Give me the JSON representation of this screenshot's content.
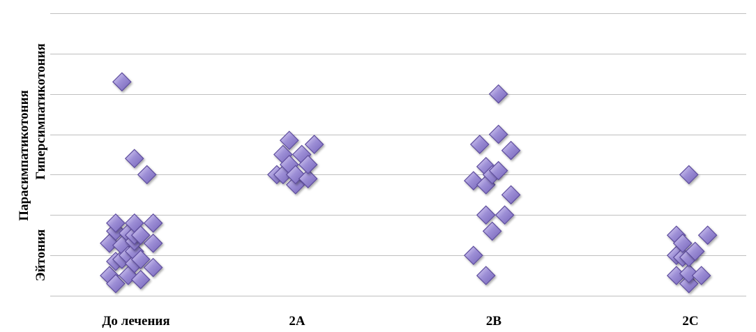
{
  "chart_data": {
    "type": "scatter",
    "title": "",
    "xlabel": "",
    "ylabel": "",
    "categories": [
      "До лечения",
      "2A",
      "2B",
      "2C"
    ],
    "y_tick_labels": [
      "Эйтония",
      "Парасимпатикотония",
      "Гиперсимпатикотония"
    ],
    "ylim": [
      0,
      7
    ],
    "grid": true,
    "legend": "none",
    "marker": "diamond",
    "marker_color": "#9d8fd6",
    "marker_edge_color": "#5f4e9e",
    "series": [
      {
        "category": "До лечения",
        "points": [
          {
            "x": -0.34,
            "y": 0.5
          },
          {
            "x": -0.34,
            "y": 1.3
          },
          {
            "x": -0.26,
            "y": 0.3
          },
          {
            "x": -0.26,
            "y": 0.85
          },
          {
            "x": -0.26,
            "y": 1.6
          },
          {
            "x": -0.26,
            "y": 1.8
          },
          {
            "x": -0.18,
            "y": 0.9
          },
          {
            "x": -0.18,
            "y": 1.25
          },
          {
            "x": -0.18,
            "y": 5.3
          },
          {
            "x": -0.1,
            "y": 0.5
          },
          {
            "x": -0.1,
            "y": 1.0
          },
          {
            "x": -0.1,
            "y": 1.55
          },
          {
            "x": -0.02,
            "y": 0.8
          },
          {
            "x": -0.02,
            "y": 1.1
          },
          {
            "x": -0.02,
            "y": 1.35
          },
          {
            "x": -0.02,
            "y": 1.5
          },
          {
            "x": -0.02,
            "y": 1.8
          },
          {
            "x": -0.02,
            "y": 3.4
          },
          {
            "x": 0.06,
            "y": 0.4
          },
          {
            "x": 0.06,
            "y": 0.9
          },
          {
            "x": 0.06,
            "y": 1.5
          },
          {
            "x": 0.14,
            "y": 3.0
          },
          {
            "x": 0.22,
            "y": 0.7
          },
          {
            "x": 0.22,
            "y": 1.3
          },
          {
            "x": 0.22,
            "y": 1.8
          }
        ]
      },
      {
        "category": "2A",
        "points": [
          {
            "x": -0.26,
            "y": 3.0
          },
          {
            "x": -0.18,
            "y": 3.0
          },
          {
            "x": -0.18,
            "y": 3.5
          },
          {
            "x": -0.1,
            "y": 3.25
          },
          {
            "x": -0.1,
            "y": 3.85
          },
          {
            "x": -0.02,
            "y": 2.75
          },
          {
            "x": -0.02,
            "y": 3.0
          },
          {
            "x": 0.06,
            "y": 3.5
          },
          {
            "x": 0.14,
            "y": 2.9
          },
          {
            "x": 0.14,
            "y": 3.25
          },
          {
            "x": 0.22,
            "y": 3.75
          }
        ]
      },
      {
        "category": "2B",
        "points": [
          {
            "x": -0.26,
            "y": 1.0
          },
          {
            "x": -0.26,
            "y": 2.85
          },
          {
            "x": -0.18,
            "y": 3.75
          },
          {
            "x": -0.1,
            "y": 0.5
          },
          {
            "x": -0.1,
            "y": 2.0
          },
          {
            "x": -0.1,
            "y": 2.75
          },
          {
            "x": -0.1,
            "y": 3.2
          },
          {
            "x": -0.02,
            "y": 1.6
          },
          {
            "x": -0.02,
            "y": 3.0
          },
          {
            "x": 0.06,
            "y": 3.1
          },
          {
            "x": 0.06,
            "y": 4.0
          },
          {
            "x": 0.06,
            "y": 5.0
          },
          {
            "x": 0.14,
            "y": 2.0
          },
          {
            "x": 0.22,
            "y": 2.5
          },
          {
            "x": 0.22,
            "y": 3.6
          }
        ]
      },
      {
        "category": "2C",
        "points": [
          {
            "x": -0.18,
            "y": 0.5
          },
          {
            "x": -0.18,
            "y": 1.0
          },
          {
            "x": -0.18,
            "y": 1.5
          },
          {
            "x": -0.1,
            "y": 0.95
          },
          {
            "x": -0.1,
            "y": 1.3
          },
          {
            "x": -0.02,
            "y": 0.3
          },
          {
            "x": -0.02,
            "y": 0.55
          },
          {
            "x": -0.02,
            "y": 0.95
          },
          {
            "x": -0.02,
            "y": 3.0
          },
          {
            "x": 0.06,
            "y": 1.1
          },
          {
            "x": 0.14,
            "y": 0.5
          },
          {
            "x": 0.22,
            "y": 1.5
          }
        ]
      }
    ]
  }
}
